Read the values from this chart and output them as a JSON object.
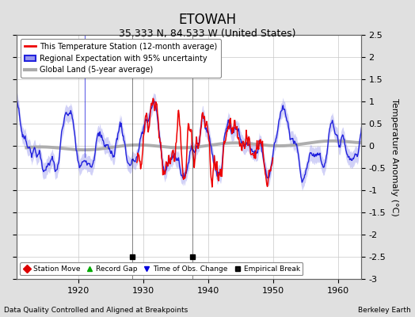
{
  "title": "ETOWAH",
  "subtitle": "35.333 N, 84.533 W (United States)",
  "xlabel_bottom": "Data Quality Controlled and Aligned at Breakpoints",
  "xlabel_right": "Berkeley Earth",
  "ylabel": "Temperature Anomaly (°C)",
  "xlim": [
    1910.5,
    1963.5
  ],
  "ylim": [
    -3.0,
    2.5
  ],
  "yticks": [
    -3,
    -2.5,
    -2,
    -1.5,
    -1,
    -0.5,
    0,
    0.5,
    1,
    1.5,
    2,
    2.5
  ],
  "xticks": [
    1920,
    1930,
    1940,
    1950,
    1960
  ],
  "bg_color": "#e0e0e0",
  "plot_bg_color": "#ffffff",
  "grid_color": "#c8c8c8",
  "regional_line_color": "#2222dd",
  "regional_fill_color": "#9999ee",
  "station_line_color": "#ee0000",
  "global_line_color": "#aaaaaa",
  "empirical_break_years": [
    1928.3,
    1937.5
  ],
  "vertical_line_year": 1921.0,
  "legend_labels": [
    "This Temperature Station (12-month average)",
    "Regional Expectation with 95% uncertainty",
    "Global Land (5-year average)"
  ],
  "marker_labels": [
    "Station Move",
    "Record Gap",
    "Time of Obs. Change",
    "Empirical Break"
  ],
  "marker_colors": [
    "#dd0000",
    "#00aa00",
    "#0000dd",
    "#111111"
  ],
  "marker_symbols": [
    "D",
    "^",
    "v",
    "s"
  ],
  "title_fontsize": 12,
  "subtitle_fontsize": 9,
  "axis_fontsize": 8,
  "legend_fontsize": 7
}
